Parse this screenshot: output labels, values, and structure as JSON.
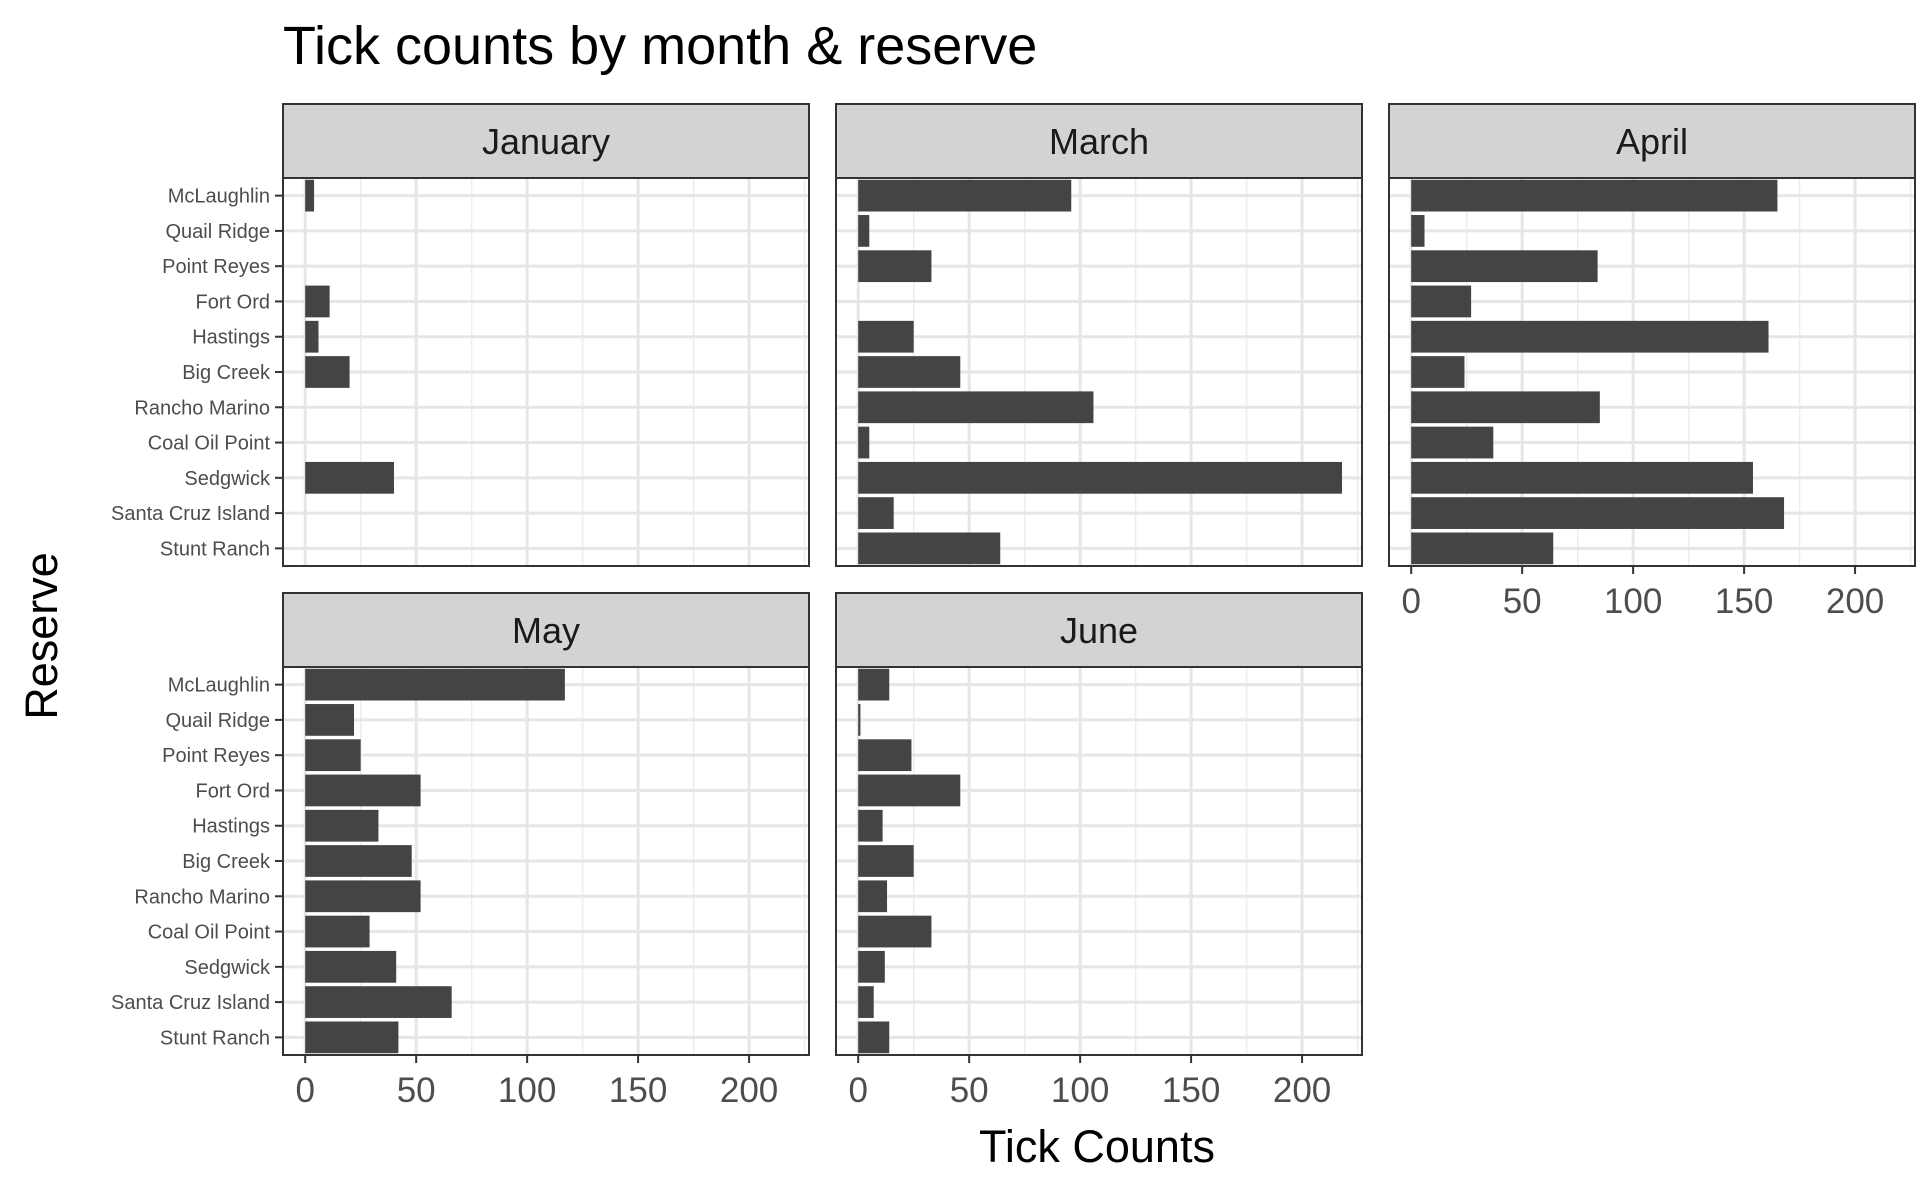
{
  "chart_data": {
    "type": "bar",
    "orientation": "horizontal",
    "title": "Tick counts by month & reserve",
    "xlabel": "Tick Counts",
    "ylabel": "Reserve",
    "xlim": [
      -10,
      227
    ],
    "xticks": [
      0,
      50,
      100,
      150,
      200
    ],
    "grid": true,
    "bar_color": "#444444",
    "strip_color": "#d3d3d3",
    "categories": [
      "McLaughlin",
      "Quail Ridge",
      "Point Reyes",
      "Fort Ord",
      "Hastings",
      "Big Creek",
      "Rancho Marino",
      "Coal Oil Point",
      "Sedgwick",
      "Santa Cruz Island",
      "Stunt Ranch"
    ],
    "series": [
      {
        "name": "January",
        "values": [
          4,
          0,
          0,
          11,
          6,
          20,
          0,
          0,
          40,
          0,
          0
        ]
      },
      {
        "name": "March",
        "values": [
          96,
          5,
          33,
          0,
          25,
          46,
          106,
          5,
          218,
          16,
          64
        ]
      },
      {
        "name": "April",
        "values": [
          165,
          6,
          84,
          27,
          161,
          24,
          85,
          37,
          154,
          168,
          64
        ]
      },
      {
        "name": "May",
        "values": [
          117,
          22,
          25,
          52,
          33,
          48,
          52,
          29,
          41,
          66,
          42
        ]
      },
      {
        "name": "June",
        "values": [
          14,
          1,
          24,
          46,
          11,
          25,
          13,
          33,
          12,
          7,
          14
        ]
      }
    ]
  }
}
